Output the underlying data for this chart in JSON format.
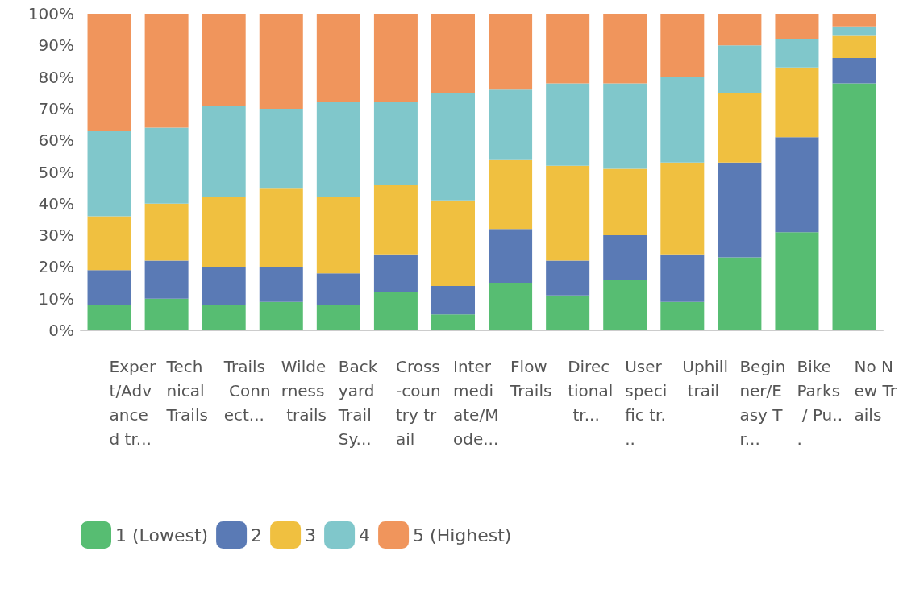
{
  "chart_data": {
    "type": "bar",
    "stacked": true,
    "categories": [
      "Expert/Advanced tr...",
      "Technical Trails",
      "Trails Connect...",
      "Wilderness trails",
      "Backyard Trail Sy...",
      "Cross-country trail",
      "Intermediate/Mode...",
      "Flow Trails",
      "Directional tr...",
      "User specific tr...",
      "Uphill trail",
      "Beginner/Easy Tr...",
      "Bike Parks / Pu...",
      "No New Trails"
    ],
    "series": [
      {
        "name": "1 (Lowest)",
        "color": "#57bd72",
        "values": [
          8,
          10,
          8,
          9,
          8,
          12,
          5,
          15,
          11,
          16,
          9,
          23,
          31,
          78
        ]
      },
      {
        "name": "2",
        "color": "#5a7ab5",
        "values": [
          11,
          12,
          12,
          11,
          10,
          12,
          9,
          17,
          11,
          14,
          15,
          30,
          30,
          8
        ]
      },
      {
        "name": "3",
        "color": "#f0c040",
        "values": [
          17,
          18,
          22,
          25,
          24,
          22,
          27,
          22,
          30,
          21,
          29,
          22,
          22,
          7
        ]
      },
      {
        "name": "4",
        "color": "#80c7cb",
        "values": [
          27,
          24,
          29,
          25,
          30,
          26,
          34,
          22,
          26,
          27,
          27,
          15,
          9,
          3
        ]
      },
      {
        "name": "5 (Highest)",
        "color": "#f0955c",
        "values": [
          37,
          36,
          29,
          30,
          28,
          28,
          25,
          24,
          22,
          22,
          20,
          10,
          8,
          4
        ]
      }
    ],
    "ylim": [
      0,
      100
    ],
    "yticks": [
      {
        "value": 0,
        "label": "0%"
      },
      {
        "value": 10,
        "label": "10%"
      },
      {
        "value": 20,
        "label": "20%"
      },
      {
        "value": 30,
        "label": "30%"
      },
      {
        "value": 40,
        "label": "40%"
      },
      {
        "value": 50,
        "label": "50%"
      },
      {
        "value": 60,
        "label": "60%"
      },
      {
        "value": 70,
        "label": "70%"
      },
      {
        "value": 80,
        "label": "80%"
      },
      {
        "value": 90,
        "label": "90%"
      },
      {
        "value": 100,
        "label": "100%"
      }
    ],
    "grid": false,
    "legend": "bottom left"
  }
}
